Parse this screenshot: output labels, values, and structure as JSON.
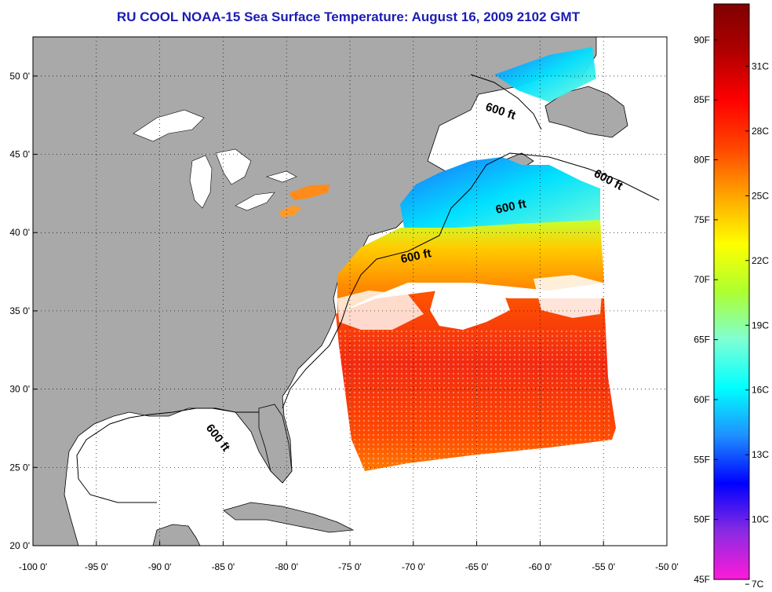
{
  "title": "RU COOL  NOAA-15  Sea Surface Temperature:  August 16, 2009 2102 GMT",
  "map": {
    "lat_labels": [
      "50 0'",
      "45 0'",
      "40 0'",
      "35 0'",
      "30 0'",
      "25 0'",
      "20 0'"
    ],
    "lat_values": [
      50,
      45,
      40,
      35,
      30,
      25,
      20
    ],
    "lon_labels": [
      "-100 0'",
      "-95 0'",
      "-90 0'",
      "-85 0'",
      "-80 0'",
      "-75 0'",
      "-70 0'",
      "-65 0'",
      "-60 0'",
      "-55 0'",
      "-50 0'"
    ],
    "lon_values": [
      -100,
      -95,
      -90,
      -85,
      -80,
      -75,
      -70,
      -65,
      -60,
      -55,
      -50
    ],
    "lon_range": [
      -100,
      -50
    ],
    "lat_range": [
      20,
      52.5
    ],
    "depth_contour_label": "600 ft",
    "land_color": "#a9a9a9",
    "grid": "dotted"
  },
  "colorbar": {
    "fahrenheit_labels": [
      "90F",
      "85F",
      "80F",
      "75F",
      "70F",
      "65F",
      "60F",
      "55F",
      "50F",
      "45F"
    ],
    "fahrenheit_values": [
      90,
      85,
      80,
      75,
      70,
      65,
      60,
      55,
      50,
      45
    ],
    "celsius_labels": [
      "31C",
      "28C",
      "25C",
      "22C",
      "19C",
      "16C",
      "13C",
      "10C",
      "7C"
    ],
    "celsius_values": [
      31,
      28,
      25,
      22,
      19,
      16,
      13,
      10,
      7
    ],
    "range_f": [
      45,
      93
    ],
    "colors": [
      "#ff1ad9",
      "#8a2be2",
      "#0000ff",
      "#1e90ff",
      "#00ffff",
      "#7fffd4",
      "#adff2f",
      "#ffff00",
      "#ffa500",
      "#ff4500",
      "#ff0000",
      "#b00000",
      "#7f0000"
    ]
  }
}
